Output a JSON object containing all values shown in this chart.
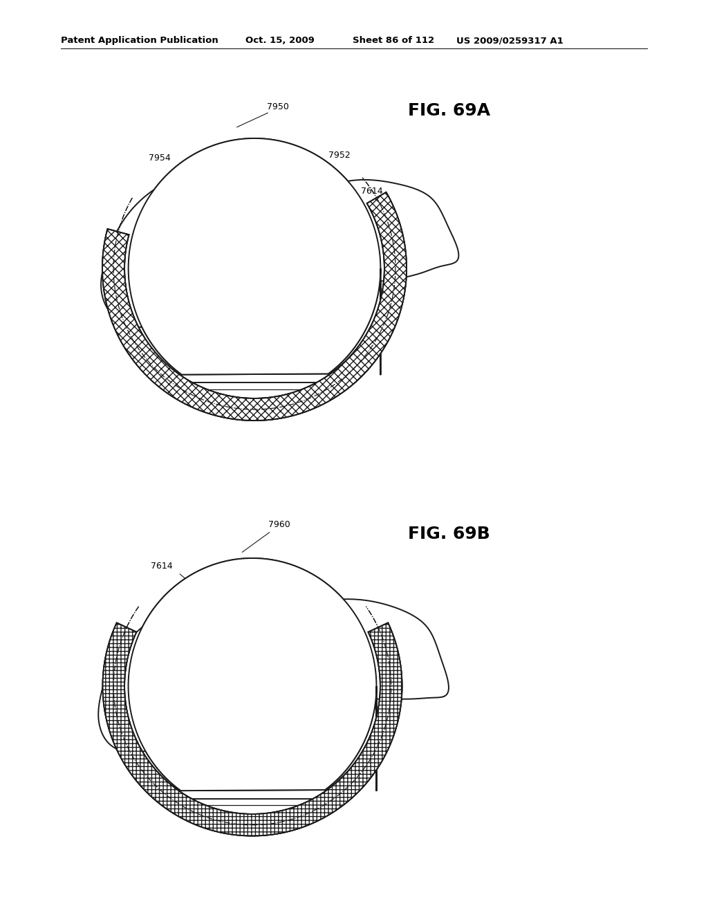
{
  "background_color": "#ffffff",
  "header_text": "Patent Application Publication",
  "header_date": "Oct. 15, 2009",
  "header_sheet": "Sheet 86 of 112",
  "header_patent": "US 2009/0259317 A1",
  "fig_69A_label": "FIG. 69A",
  "fig_69B_label": "FIG. 69B",
  "line_color": "#1a1a1a",
  "text_color": "#000000",
  "header_fontsize": 9.5,
  "label_fontsize": 9,
  "fig_label_fontsize": 18
}
